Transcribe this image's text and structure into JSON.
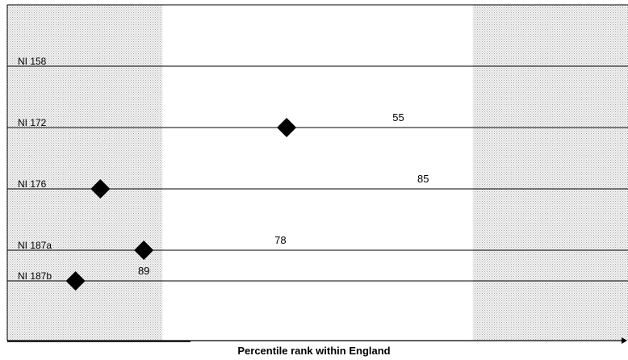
{
  "chart_data": {
    "type": "scatter",
    "title": "",
    "xlabel": "Percentile rank within England",
    "ylabel": "",
    "categories": [
      "NI 158",
      "NI 172",
      "NI 176",
      "NI 187a",
      "NI 187b"
    ],
    "points": [
      {
        "category": "NI 172",
        "x": 45,
        "label": "55",
        "label_x": 63
      },
      {
        "category": "NI 176",
        "x": 15,
        "label": "85",
        "label_x": 67
      },
      {
        "category": "NI 187a",
        "x": 22,
        "label": "78",
        "label_x": 44
      },
      {
        "category": "NI 187b",
        "x": 11,
        "label": "89",
        "label_x": 22
      }
    ],
    "xlim": [
      0,
      100
    ],
    "bands": [
      {
        "from": 0,
        "to": 25,
        "pattern": "dotted"
      },
      {
        "from": 75,
        "to": 100,
        "pattern": "dotted"
      }
    ],
    "marker": "diamond",
    "colors": {
      "marker": "#000000",
      "line": "#000000",
      "band": "#d8d8d8"
    },
    "grid": false
  }
}
